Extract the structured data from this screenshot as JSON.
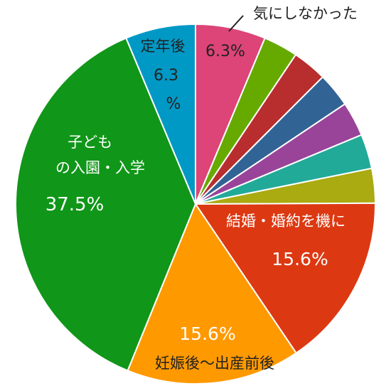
{
  "chart_data": {
    "type": "pie",
    "title": "",
    "slices": [
      {
        "label": "気にしなかった",
        "value": 6.3,
        "value_label": "6.3%",
        "color": "#dd4477"
      },
      {
        "label": "",
        "value": 3.1,
        "color": "#66aa00"
      },
      {
        "label": "",
        "value": 3.1,
        "color": "#b82e2e"
      },
      {
        "label": "",
        "value": 3.1,
        "color": "#316395"
      },
      {
        "label": "",
        "value": 3.1,
        "color": "#994499"
      },
      {
        "label": "",
        "value": 3.1,
        "color": "#22aa99"
      },
      {
        "label": "",
        "value": 3.1,
        "color": "#aaaa11"
      },
      {
        "label": "結婚・婚約を機に",
        "value": 15.6,
        "value_label": "15.6%",
        "color": "#dc3912"
      },
      {
        "label": "妊娠後～出産前後",
        "value": 15.6,
        "value_label": "15.6%",
        "color": "#ff9900"
      },
      {
        "label": "子ども の入園・入学",
        "value": 37.5,
        "value_label": "37.5%",
        "color": "#109618"
      },
      {
        "label": "定年後",
        "value": 6.3,
        "value_label": "6.3%",
        "color": "#0099c6"
      }
    ],
    "start_angle": "top",
    "direction": "clockwise",
    "legend": "none"
  }
}
